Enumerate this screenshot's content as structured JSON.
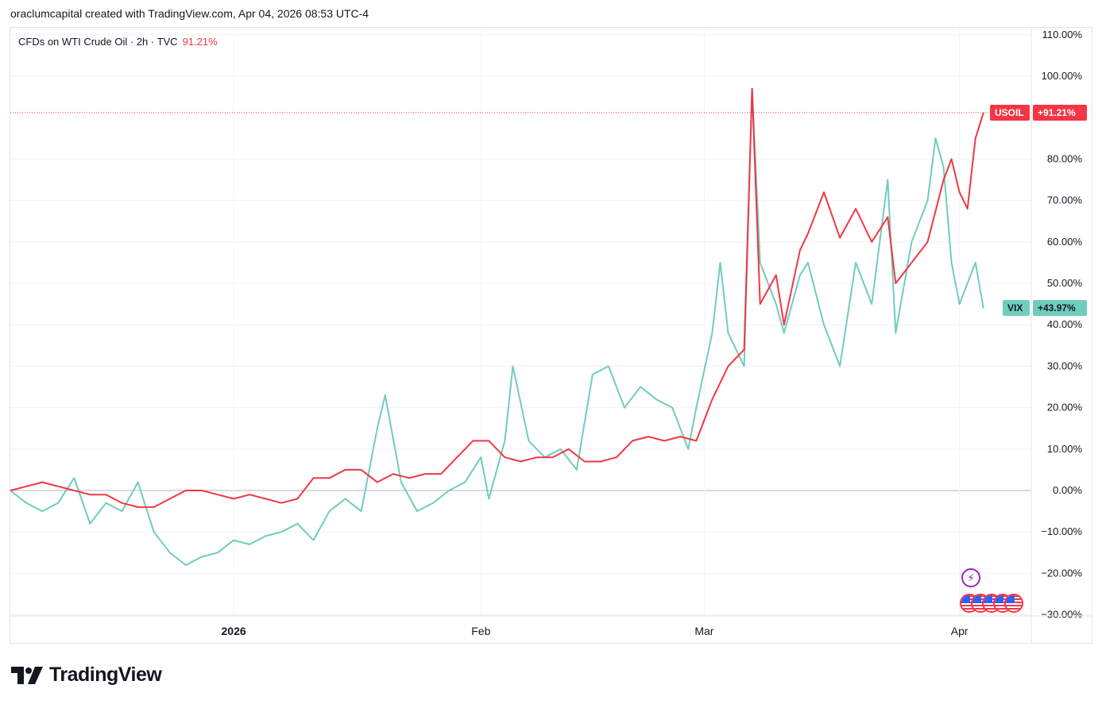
{
  "header": {
    "attribution": "oraclumcapital created with TradingView.com, Apr 04, 2026 08:53 UTC-4"
  },
  "legend": {
    "symbol_text": "CFDs on WTI Crude Oil · 2h · TVC",
    "change_text": "91.21%"
  },
  "price_tags": {
    "usoil_name": "USOIL",
    "usoil_value": "+91.21%",
    "vix_name": "VIX",
    "vix_value": "+43.97%"
  },
  "brand": {
    "name": "TradingView"
  },
  "icons": {
    "events": "lightning-icon",
    "flags": "us-flag-icon"
  },
  "colors": {
    "usoil": "#f23645",
    "vix": "#6fcdbd",
    "grid": "#f0f3fa",
    "axis_text": "#131722"
  },
  "chart_data": {
    "type": "line",
    "y_unit": "percent change",
    "ylim": [
      -30,
      110
    ],
    "y_ticks": [
      110,
      100,
      80,
      70,
      60,
      50,
      40,
      30,
      20,
      10,
      0,
      -10,
      -20,
      -30
    ],
    "y_tick_labels": [
      "110.00%",
      "100.00%",
      "80.00%",
      "70.00%",
      "60.00%",
      "50.00%",
      "40.00%",
      "30.00%",
      "20.00%",
      "10.00%",
      "0.00%",
      "−10.00%",
      "−20.00%",
      "−30.00%"
    ],
    "x_tick_labels": [
      "2026",
      "Feb",
      "Mar",
      "Apr"
    ],
    "x_ticks_days": [
      28,
      59,
      87,
      119
    ],
    "xlim_days": [
      0,
      128
    ],
    "grid": true,
    "last_value_line": 91.21,
    "series": [
      {
        "name": "USOIL",
        "color": "#f23645",
        "last": 91.21,
        "points": [
          [
            0,
            0
          ],
          [
            2,
            1
          ],
          [
            4,
            2
          ],
          [
            6,
            1
          ],
          [
            8,
            0
          ],
          [
            10,
            -1
          ],
          [
            12,
            -1
          ],
          [
            14,
            -3
          ],
          [
            16,
            -4
          ],
          [
            18,
            -4
          ],
          [
            20,
            -2
          ],
          [
            22,
            0
          ],
          [
            24,
            0
          ],
          [
            26,
            -1
          ],
          [
            28,
            -2
          ],
          [
            30,
            -1
          ],
          [
            32,
            -2
          ],
          [
            34,
            -3
          ],
          [
            36,
            -2
          ],
          [
            38,
            3
          ],
          [
            40,
            3
          ],
          [
            42,
            5
          ],
          [
            44,
            5
          ],
          [
            46,
            2
          ],
          [
            48,
            4
          ],
          [
            50,
            3
          ],
          [
            52,
            4
          ],
          [
            54,
            4
          ],
          [
            56,
            8
          ],
          [
            58,
            12
          ],
          [
            60,
            12
          ],
          [
            62,
            8
          ],
          [
            64,
            7
          ],
          [
            66,
            8
          ],
          [
            68,
            8
          ],
          [
            70,
            10
          ],
          [
            72,
            7
          ],
          [
            74,
            7
          ],
          [
            76,
            8
          ],
          [
            78,
            12
          ],
          [
            80,
            13
          ],
          [
            82,
            12
          ],
          [
            84,
            13
          ],
          [
            86,
            12
          ],
          [
            88,
            22
          ],
          [
            90,
            30
          ],
          [
            92,
            34
          ],
          [
            93,
            97
          ],
          [
            94,
            45
          ],
          [
            96,
            52
          ],
          [
            97,
            40
          ],
          [
            99,
            58
          ],
          [
            100,
            62
          ],
          [
            102,
            72
          ],
          [
            104,
            61
          ],
          [
            106,
            68
          ],
          [
            108,
            60
          ],
          [
            110,
            66
          ],
          [
            111,
            50
          ],
          [
            113,
            55
          ],
          [
            115,
            60
          ],
          [
            117,
            75
          ],
          [
            118,
            80
          ],
          [
            119,
            72
          ],
          [
            120,
            68
          ],
          [
            121,
            85
          ],
          [
            122,
            91.21
          ]
        ]
      },
      {
        "name": "VIX",
        "color": "#6fcdbd",
        "last": 43.97,
        "points": [
          [
            0,
            0
          ],
          [
            2,
            -3
          ],
          [
            4,
            -5
          ],
          [
            6,
            -3
          ],
          [
            8,
            3
          ],
          [
            10,
            -8
          ],
          [
            12,
            -3
          ],
          [
            14,
            -5
          ],
          [
            16,
            2
          ],
          [
            18,
            -10
          ],
          [
            20,
            -15
          ],
          [
            22,
            -18
          ],
          [
            24,
            -16
          ],
          [
            26,
            -15
          ],
          [
            28,
            -12
          ],
          [
            30,
            -13
          ],
          [
            32,
            -11
          ],
          [
            34,
            -10
          ],
          [
            36,
            -8
          ],
          [
            38,
            -12
          ],
          [
            40,
            -5
          ],
          [
            42,
            -2
          ],
          [
            44,
            -5
          ],
          [
            46,
            15
          ],
          [
            47,
            23
          ],
          [
            49,
            2
          ],
          [
            51,
            -5
          ],
          [
            53,
            -3
          ],
          [
            55,
            0
          ],
          [
            57,
            2
          ],
          [
            59,
            8
          ],
          [
            60,
            -2
          ],
          [
            62,
            12
          ],
          [
            63,
            30
          ],
          [
            65,
            12
          ],
          [
            67,
            8
          ],
          [
            69,
            10
          ],
          [
            71,
            5
          ],
          [
            73,
            28
          ],
          [
            75,
            30
          ],
          [
            77,
            20
          ],
          [
            79,
            25
          ],
          [
            81,
            22
          ],
          [
            83,
            20
          ],
          [
            85,
            10
          ],
          [
            86,
            20
          ],
          [
            88,
            38
          ],
          [
            89,
            55
          ],
          [
            90,
            38
          ],
          [
            92,
            30
          ],
          [
            93,
            97
          ],
          [
            94,
            55
          ],
          [
            96,
            45
          ],
          [
            97,
            38
          ],
          [
            99,
            52
          ],
          [
            100,
            55
          ],
          [
            102,
            40
          ],
          [
            104,
            30
          ],
          [
            106,
            55
          ],
          [
            108,
            45
          ],
          [
            110,
            75
          ],
          [
            111,
            38
          ],
          [
            113,
            60
          ],
          [
            115,
            70
          ],
          [
            116,
            85
          ],
          [
            117,
            78
          ],
          [
            118,
            55
          ],
          [
            119,
            45
          ],
          [
            121,
            55
          ],
          [
            122,
            43.97
          ]
        ]
      }
    ]
  }
}
